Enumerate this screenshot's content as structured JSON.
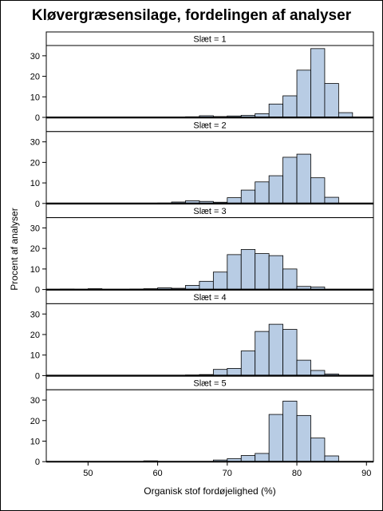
{
  "chart_data": {
    "type": "bar",
    "title": "Kløvergræsensilage, fordelingen af analyser",
    "xlabel": "Organisk stof fordøjelighed (%)",
    "ylabel": "Procent af analyser",
    "xlim": [
      44,
      91
    ],
    "ylim": [
      0,
      35
    ],
    "x_ticks": [
      50,
      60,
      70,
      80,
      90
    ],
    "y_ticks": [
      0,
      10,
      20,
      30
    ],
    "bin_width": 2,
    "colors": {
      "bar_fill": "#b8cce4",
      "bar_stroke": "#000000"
    },
    "panels": [
      {
        "label": "Slæt = 1",
        "bins": [
          [
            46,
            0.2
          ],
          [
            62,
            0.2
          ],
          [
            64,
            0.3
          ],
          [
            66,
            0.8
          ],
          [
            68,
            0.4
          ],
          [
            70,
            0.7
          ],
          [
            72,
            1.0
          ],
          [
            74,
            1.8
          ],
          [
            76,
            6.5
          ],
          [
            78,
            10.5
          ],
          [
            80,
            23
          ],
          [
            82,
            33.5
          ],
          [
            84,
            16.5
          ],
          [
            86,
            2.3
          ],
          [
            88,
            0.2
          ]
        ]
      },
      {
        "label": "Slæt = 2",
        "bins": [
          [
            60,
            0.2
          ],
          [
            62,
            0.7
          ],
          [
            64,
            1.3
          ],
          [
            66,
            1.0
          ],
          [
            68,
            0.6
          ],
          [
            70,
            2.8
          ],
          [
            72,
            6.5
          ],
          [
            74,
            10.5
          ],
          [
            76,
            13.5
          ],
          [
            78,
            22.5
          ],
          [
            80,
            24.0
          ],
          [
            82,
            12.5
          ],
          [
            84,
            3.0
          ]
        ]
      },
      {
        "label": "Slæt = 3",
        "bins": [
          [
            46,
            0.2
          ],
          [
            48,
            0.1
          ],
          [
            50,
            0.4
          ],
          [
            56,
            0.2
          ],
          [
            58,
            0.4
          ],
          [
            60,
            0.8
          ],
          [
            62,
            0.6
          ],
          [
            64,
            2.0
          ],
          [
            66,
            4.0
          ],
          [
            68,
            8.5
          ],
          [
            70,
            17.0
          ],
          [
            72,
            19.5
          ],
          [
            74,
            17.5
          ],
          [
            76,
            16.5
          ],
          [
            78,
            10.0
          ],
          [
            80,
            1.5
          ],
          [
            82,
            1.2
          ]
        ]
      },
      {
        "label": "Slæt = 4",
        "bins": [
          [
            62,
            0.1
          ],
          [
            64,
            0.3
          ],
          [
            66,
            0.5
          ],
          [
            68,
            3.0
          ],
          [
            70,
            3.5
          ],
          [
            72,
            12.0
          ],
          [
            74,
            21.5
          ],
          [
            76,
            25.0
          ],
          [
            78,
            22.5
          ],
          [
            80,
            7.5
          ],
          [
            82,
            2.5
          ],
          [
            84,
            0.8
          ]
        ]
      },
      {
        "label": "Slæt = 5",
        "bins": [
          [
            58,
            0.4
          ],
          [
            68,
            0.8
          ],
          [
            70,
            1.5
          ],
          [
            72,
            3.0
          ],
          [
            74,
            4.0
          ],
          [
            76,
            23.0
          ],
          [
            78,
            29.5
          ],
          [
            80,
            22.5
          ],
          [
            82,
            11.5
          ],
          [
            84,
            2.8
          ]
        ]
      }
    ]
  }
}
